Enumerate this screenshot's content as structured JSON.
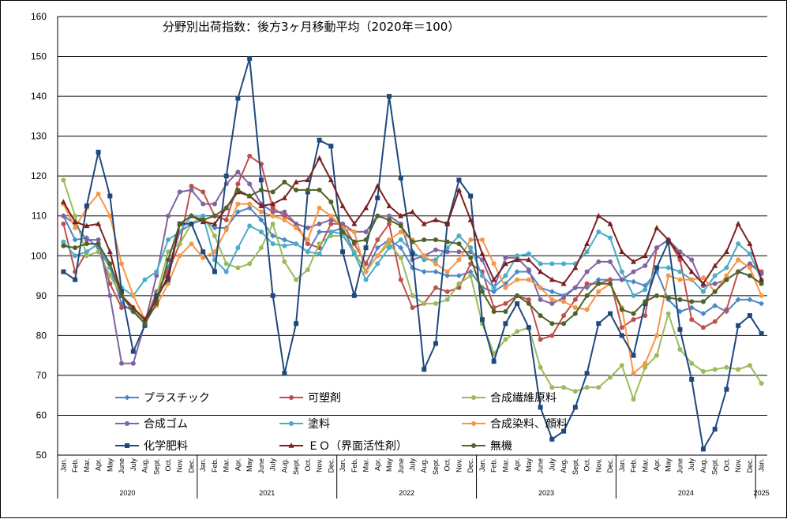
{
  "chart_data": {
    "type": "line",
    "title": "分野別出荷指数：後方3ヶ月移動平均（2020年＝100）",
    "ylim": [
      50,
      160
    ],
    "yticks": [
      50,
      60,
      70,
      80,
      90,
      100,
      110,
      120,
      130,
      140,
      150,
      160
    ],
    "grid": "horizontal",
    "legend": "bottom-left, inside plot",
    "x_month_labels": [
      "Jan.",
      "Feb.",
      "Mar.",
      "Apr.",
      "May",
      "June",
      "July",
      "Aug.",
      "Sept.",
      "Oct.",
      "Nov.",
      "Dec.",
      "Jan.",
      "Feb.",
      "Mar.",
      "Apr.",
      "May",
      "June",
      "July",
      "Aug.",
      "Sept.",
      "Oct.",
      "Nov.",
      "Dec.",
      "Jan.",
      "Feb.",
      "Mar.",
      "Apr.",
      "May",
      "June",
      "July",
      "Aug.",
      "Sept.",
      "Oct.",
      "Nov.",
      "Dec.",
      "Jan.",
      "Feb.",
      "Mar.",
      "Apr.",
      "May",
      "June",
      "July",
      "Aug.",
      "Sept.",
      "Oct.",
      "Nov.",
      "Dec.",
      "Jan.",
      "Feb.",
      "Mar.",
      "Apr.",
      "May",
      "June",
      "July",
      "Aug.",
      "Sept.",
      "Oct.",
      "Nov.",
      "Dec.",
      "Jan."
    ],
    "x_year_labels": [
      "2020",
      "2021",
      "2022",
      "2023",
      "2024",
      "2025"
    ],
    "series": [
      {
        "name": "プラスチック",
        "color": "#4a86c8",
        "marker": "diamond",
        "values": [
          110,
          104,
          104.5,
          102,
          97,
          88,
          86,
          84,
          90,
          97,
          106,
          108,
          109,
          107,
          107,
          111,
          112,
          109,
          105,
          104,
          103,
          101,
          106,
          106,
          107,
          101,
          96,
          102,
          104,
          102,
          97,
          96,
          96,
          95,
          95,
          96,
          92,
          91,
          93,
          96,
          96,
          92,
          91,
          90,
          92,
          92,
          94,
          94,
          94,
          93.5,
          92.5,
          96,
          89,
          86,
          87,
          85.5,
          87.5,
          86,
          89,
          89,
          88
        ]
      },
      {
        "name": "可塑剤",
        "color": "#c0504d",
        "marker": "circle",
        "values": [
          108,
          96,
          101,
          103,
          93,
          87,
          87,
          83,
          91,
          96,
          103,
          117.5,
          116,
          110,
          109,
          118,
          125,
          123,
          112,
          110,
          108,
          103,
          102,
          108,
          108,
          103,
          98,
          104,
          108,
          94,
          87,
          88,
          92,
          91,
          92,
          98,
          96,
          87,
          88,
          90,
          89,
          79,
          80,
          85,
          89,
          93,
          93,
          94,
          82,
          84,
          85,
          102,
          104,
          99,
          84,
          82,
          83.5,
          86.5,
          96,
          98,
          96
        ]
      },
      {
        "name": "合成繊維原料",
        "color": "#9bbb59",
        "marker": "circle",
        "values": [
          119,
          110,
          100,
          101,
          95,
          90,
          87,
          83,
          90,
          101,
          103,
          108,
          110,
          105,
          98,
          97,
          98,
          102,
          108,
          98.5,
          94,
          96.5,
          103,
          105,
          105,
          101,
          96,
          100,
          103,
          99.5,
          90,
          88,
          88,
          89,
          93,
          95,
          83,
          75.5,
          79,
          81,
          82,
          72,
          67,
          67,
          66,
          67,
          67,
          69.5,
          72.5,
          64,
          72,
          75,
          85.5,
          76.5,
          73,
          71,
          71.5,
          72,
          71.5,
          72.5,
          68
        ]
      },
      {
        "name": "合成ゴム",
        "color": "#8064a2",
        "marker": "circle",
        "values": [
          110,
          108,
          104,
          104,
          90,
          73,
          73,
          83,
          95,
          110,
          116,
          116.5,
          113,
          113,
          118,
          121,
          118,
          113,
          111,
          111,
          108,
          107,
          108,
          109,
          108,
          106,
          106,
          110,
          110,
          108,
          99,
          100,
          101.5,
          101,
          101,
          101,
          99,
          92,
          99.5,
          99.5,
          96.5,
          89,
          88,
          89.5,
          92,
          96,
          98.5,
          98.5,
          94,
          96,
          97.5,
          102,
          104,
          101,
          99,
          92.5,
          93,
          94,
          96,
          98,
          95.5
        ]
      },
      {
        "name": "塗料",
        "color": "#4bacc6",
        "marker": "circle",
        "values": [
          103.5,
          100,
          101,
          103,
          97,
          92,
          90,
          94,
          96,
          104,
          106,
          110,
          110,
          99,
          96,
          102,
          107.5,
          106,
          103,
          102.5,
          103,
          101,
          100.5,
          106,
          105.5,
          100.5,
          94,
          98,
          102,
          104,
          101,
          99,
          99,
          102,
          105,
          102,
          95,
          92,
          95,
          100,
          100.5,
          98,
          98,
          98,
          98,
          101,
          106,
          104.5,
          96,
          90,
          91.5,
          97,
          97,
          96,
          94,
          91,
          95,
          97,
          103,
          100.5,
          94
        ]
      },
      {
        "name": "合成染料、顔料",
        "color": "#f79646",
        "marker": "circle",
        "values": [
          113,
          107,
          112,
          115.5,
          110,
          98,
          90,
          84,
          87.5,
          93,
          100,
          103,
          99.5,
          101,
          106.5,
          113,
          113,
          111,
          110,
          109,
          107,
          104,
          112,
          110,
          107,
          106,
          96,
          100,
          104,
          106,
          104,
          100,
          98,
          96,
          99,
          104,
          104,
          98,
          92,
          94,
          94,
          92,
          89,
          88.5,
          87,
          86.5,
          91,
          93,
          87,
          70.5,
          73,
          80,
          95,
          94,
          94,
          94.5,
          91,
          95,
          99,
          97,
          90
        ]
      },
      {
        "name": "化学肥料",
        "color": "#1f497d",
        "marker": "square",
        "values": [
          96,
          94,
          112.5,
          126,
          115,
          91,
          76,
          82.5,
          90,
          94,
          108,
          108,
          101,
          96,
          120,
          139.5,
          149.5,
          119,
          90,
          70.5,
          83,
          116,
          129,
          127.5,
          101,
          90,
          102,
          114.5,
          140,
          119.5,
          100.5,
          71.5,
          78,
          108,
          119,
          115,
          84,
          73.5,
          83,
          88,
          82,
          62,
          54,
          56,
          62,
          70.5,
          83,
          85.5,
          80,
          75,
          88,
          97,
          103.5,
          81.5,
          69,
          51.5,
          56.5,
          66.5,
          82.5,
          85,
          80.5
        ]
      },
      {
        "name": "ＥＯ（界面活性剤）",
        "color": "#7b1f1f",
        "marker": "triangle",
        "values": [
          113.5,
          108.5,
          107.5,
          108,
          101,
          90,
          87,
          84,
          89,
          95,
          108,
          110,
          108.5,
          108,
          112,
          116,
          115,
          112.5,
          113,
          114.5,
          118.5,
          119,
          124.5,
          119,
          112.5,
          108,
          112,
          117.5,
          112.5,
          110,
          111,
          108,
          109,
          108,
          116.5,
          109,
          100.5,
          94,
          98,
          99,
          99,
          96,
          94,
          93,
          97,
          103,
          110,
          108,
          101,
          98.5,
          100,
          107,
          104,
          100,
          96,
          93,
          97.5,
          101,
          108,
          103,
          94
        ]
      },
      {
        "name": "無機",
        "color": "#4f6228",
        "marker": "circle",
        "values": [
          102.5,
          102,
          103,
          103,
          98,
          90,
          86,
          83,
          88,
          99,
          108,
          110,
          109,
          110,
          112,
          116.5,
          115,
          116.5,
          116,
          118.5,
          116.5,
          116.5,
          116.5,
          113.5,
          106,
          103.5,
          104,
          110,
          109,
          107.5,
          103.5,
          104,
          104,
          103.5,
          103,
          99.5,
          91,
          86,
          86,
          90,
          88,
          85,
          83,
          83,
          85.5,
          90,
          93,
          93,
          86.5,
          85.5,
          88.5,
          90,
          89.5,
          89,
          88.5,
          88.5,
          91,
          94,
          96,
          95,
          93
        ]
      }
    ]
  }
}
